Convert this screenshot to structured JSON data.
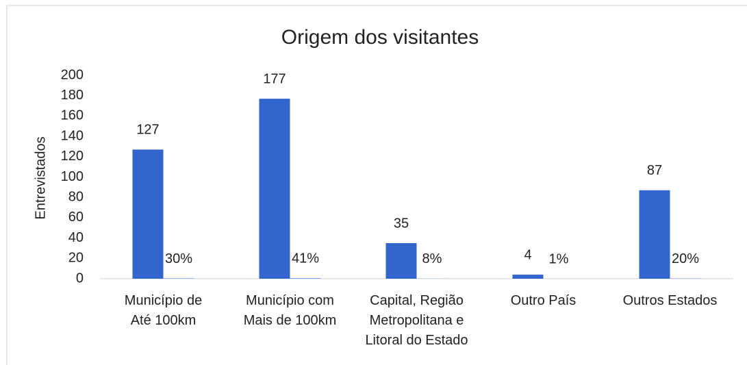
{
  "chart_data": {
    "type": "bar",
    "title": "Origem dos visitantes",
    "y_label": "Entrevistados",
    "categories": [
      "Município de\nAté 100km",
      "Município com\nMais de 100km",
      "Capital, Região\nMetropolitana e\nLitoral do Estado",
      "Outro País",
      "Outros Estados"
    ],
    "series": [
      {
        "color": "#3366cc",
        "values": [
          127,
          177,
          35,
          4,
          87
        ]
      },
      {
        "color": "#3366cc",
        "values": [
          0.3,
          0.41,
          0.08,
          0.01,
          0.2
        ],
        "value_labels": [
          "30%",
          "41%",
          "8%",
          "1%",
          "20%"
        ]
      }
    ],
    "ylim": [
      0,
      200
    ],
    "yticks": [
      0,
      20,
      40,
      60,
      80,
      100,
      120,
      140,
      160,
      180,
      200
    ],
    "grid": false
  }
}
